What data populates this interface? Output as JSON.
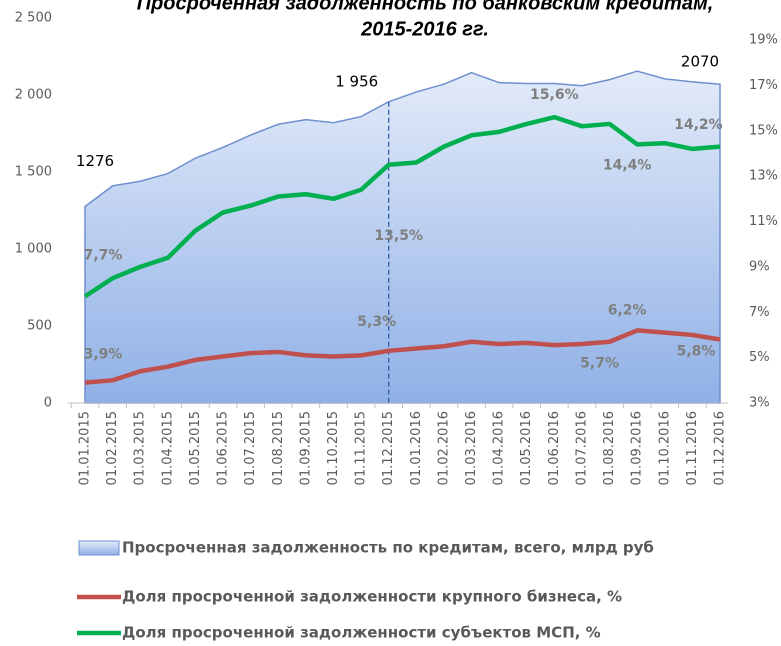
{
  "chart_data": {
    "type": "area-line-combo",
    "title": [
      "Просроченная задолженность по банковским кредитам,",
      "2015-2016 гг."
    ],
    "categories": [
      "01.01.2015",
      "01.02.2015",
      "01.03.2015",
      "01.04.2015",
      "01.05.2015",
      "01.06.2015",
      "01.07.2015",
      "01.08.2015",
      "01.09.2015",
      "01.10.2015",
      "01.11.2015",
      "01.12.2015",
      "01.01.2016",
      "01.02.2016",
      "01.03.2016",
      "01.04.2016",
      "01.05.2016",
      "01.06.2016",
      "01.07.2016",
      "01.08.2016",
      "01.09.2016",
      "01.10.2016",
      "01.11.2016",
      "01.12.2016"
    ],
    "series": [
      {
        "name": "Просроченная задолженность по кредитам, всего, млрд руб",
        "color": "#6f8fcf",
        "kind": "area",
        "values": [
          1276,
          1410,
          1440,
          1490,
          1590,
          1660,
          1740,
          1810,
          1840,
          1820,
          1860,
          1956,
          2020,
          2070,
          2145,
          2080,
          2075,
          2075,
          2060,
          2100,
          2155,
          2105,
          2085,
          2070
        ],
        "value_labels": [
          "1276",
          null,
          null,
          null,
          null,
          null,
          null,
          null,
          null,
          null,
          null,
          "1 956",
          null,
          null,
          null,
          null,
          null,
          null,
          null,
          null,
          null,
          null,
          null,
          "2070"
        ]
      },
      {
        "name": "Доля просроченной задолженности крупного бизнеса, %",
        "color": "#c0504d",
        "kind": "line",
        "axis": "y2",
        "values": [
          3.9,
          4.0,
          4.4,
          4.6,
          4.9,
          5.05,
          5.2,
          5.25,
          5.1,
          5.05,
          5.1,
          5.3,
          5.4,
          5.5,
          5.7,
          5.6,
          5.65,
          5.55,
          5.6,
          5.7,
          6.2,
          6.1,
          6.0,
          5.8
        ],
        "value_labels": [
          "3,9%",
          null,
          null,
          null,
          null,
          null,
          null,
          null,
          null,
          null,
          null,
          "5,3%",
          null,
          null,
          null,
          null,
          null,
          null,
          null,
          "5,7%",
          "6,2%",
          null,
          null,
          "5,8%"
        ]
      },
      {
        "name": "Доля просроченной задолженности субъектов МСП, %",
        "color": "#00b050",
        "kind": "line",
        "axis": "y2",
        "values": [
          7.7,
          8.5,
          9.0,
          9.4,
          10.6,
          11.4,
          11.7,
          12.1,
          12.2,
          12.0,
          12.4,
          13.5,
          13.6,
          14.3,
          14.8,
          14.95,
          15.3,
          15.6,
          15.2,
          15.3,
          14.4,
          14.45,
          14.2,
          14.3
        ],
        "value_labels": [
          "7,7%",
          null,
          null,
          null,
          null,
          null,
          null,
          null,
          null,
          null,
          null,
          "13,5%",
          null,
          null,
          null,
          null,
          null,
          "15,6%",
          null,
          null,
          "14,4%",
          null,
          "14,2%",
          null
        ]
      }
    ],
    "ylim": [
      0,
      2500
    ],
    "yticks": [
      0,
      500,
      {
        "value": 1000,
        "label": "1 000"
      },
      {
        "value": 1500,
        "label": "1 500"
      },
      {
        "value": 2000,
        "label": "2 000"
      },
      {
        "value": 2500,
        "label": "2 500"
      }
    ],
    "y2lim": [
      3,
      19
    ],
    "y2ticks": [
      {
        "value": 3,
        "label": "3%"
      },
      {
        "value": 5,
        "label": "5%"
      },
      {
        "value": 7,
        "label": "7%"
      },
      {
        "value": 9,
        "label": "9%"
      },
      {
        "value": 11,
        "label": "11%"
      },
      {
        "value": 13,
        "label": "13%"
      },
      {
        "value": 15,
        "label": "15%"
      },
      {
        "value": 17,
        "label": "17%"
      },
      {
        "value": 19,
        "label": "19%"
      }
    ],
    "legend": "bottom"
  }
}
